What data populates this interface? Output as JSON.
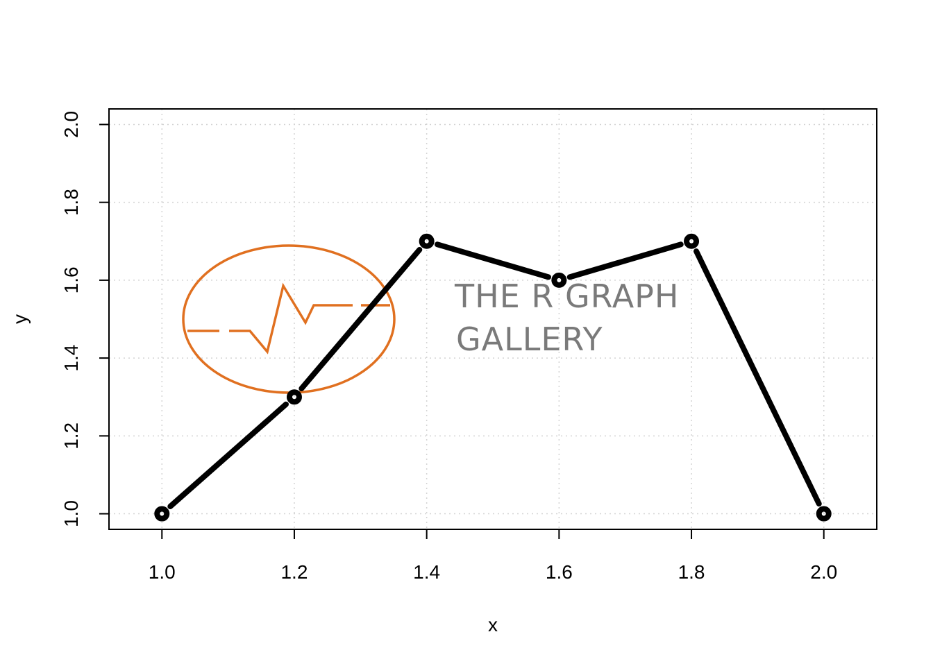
{
  "chart_data": {
    "type": "line",
    "title": "",
    "xlabel": "x",
    "ylabel": "y",
    "x": [
      1.0,
      1.2,
      1.4,
      1.6,
      1.8,
      2.0
    ],
    "series": [
      {
        "values": [
          1.0,
          1.3,
          1.7,
          1.6,
          1.7,
          1.0
        ]
      }
    ],
    "xlim": [
      0.92,
      2.08
    ],
    "ylim": [
      0.96,
      2.04
    ],
    "x_ticks": [
      1.0,
      1.2,
      1.4,
      1.6,
      1.8,
      2.0
    ],
    "y_ticks": [
      1.0,
      1.2,
      1.4,
      1.6,
      1.8,
      2.0
    ],
    "x_tick_labels": [
      "1.0",
      "1.2",
      "1.4",
      "1.6",
      "1.8",
      "2.0"
    ],
    "y_tick_labels": [
      "1.0",
      "1.2",
      "1.4",
      "1.6",
      "1.8",
      "2.0"
    ],
    "grid": true,
    "line_type": "b",
    "line_color": "#000000",
    "grid_color": "#d3d3d3"
  },
  "watermark": {
    "line1": "THE R GRAPH",
    "line2": "GALLERY",
    "logo_color": "#e07020",
    "text_color": "#7a7a7a"
  }
}
